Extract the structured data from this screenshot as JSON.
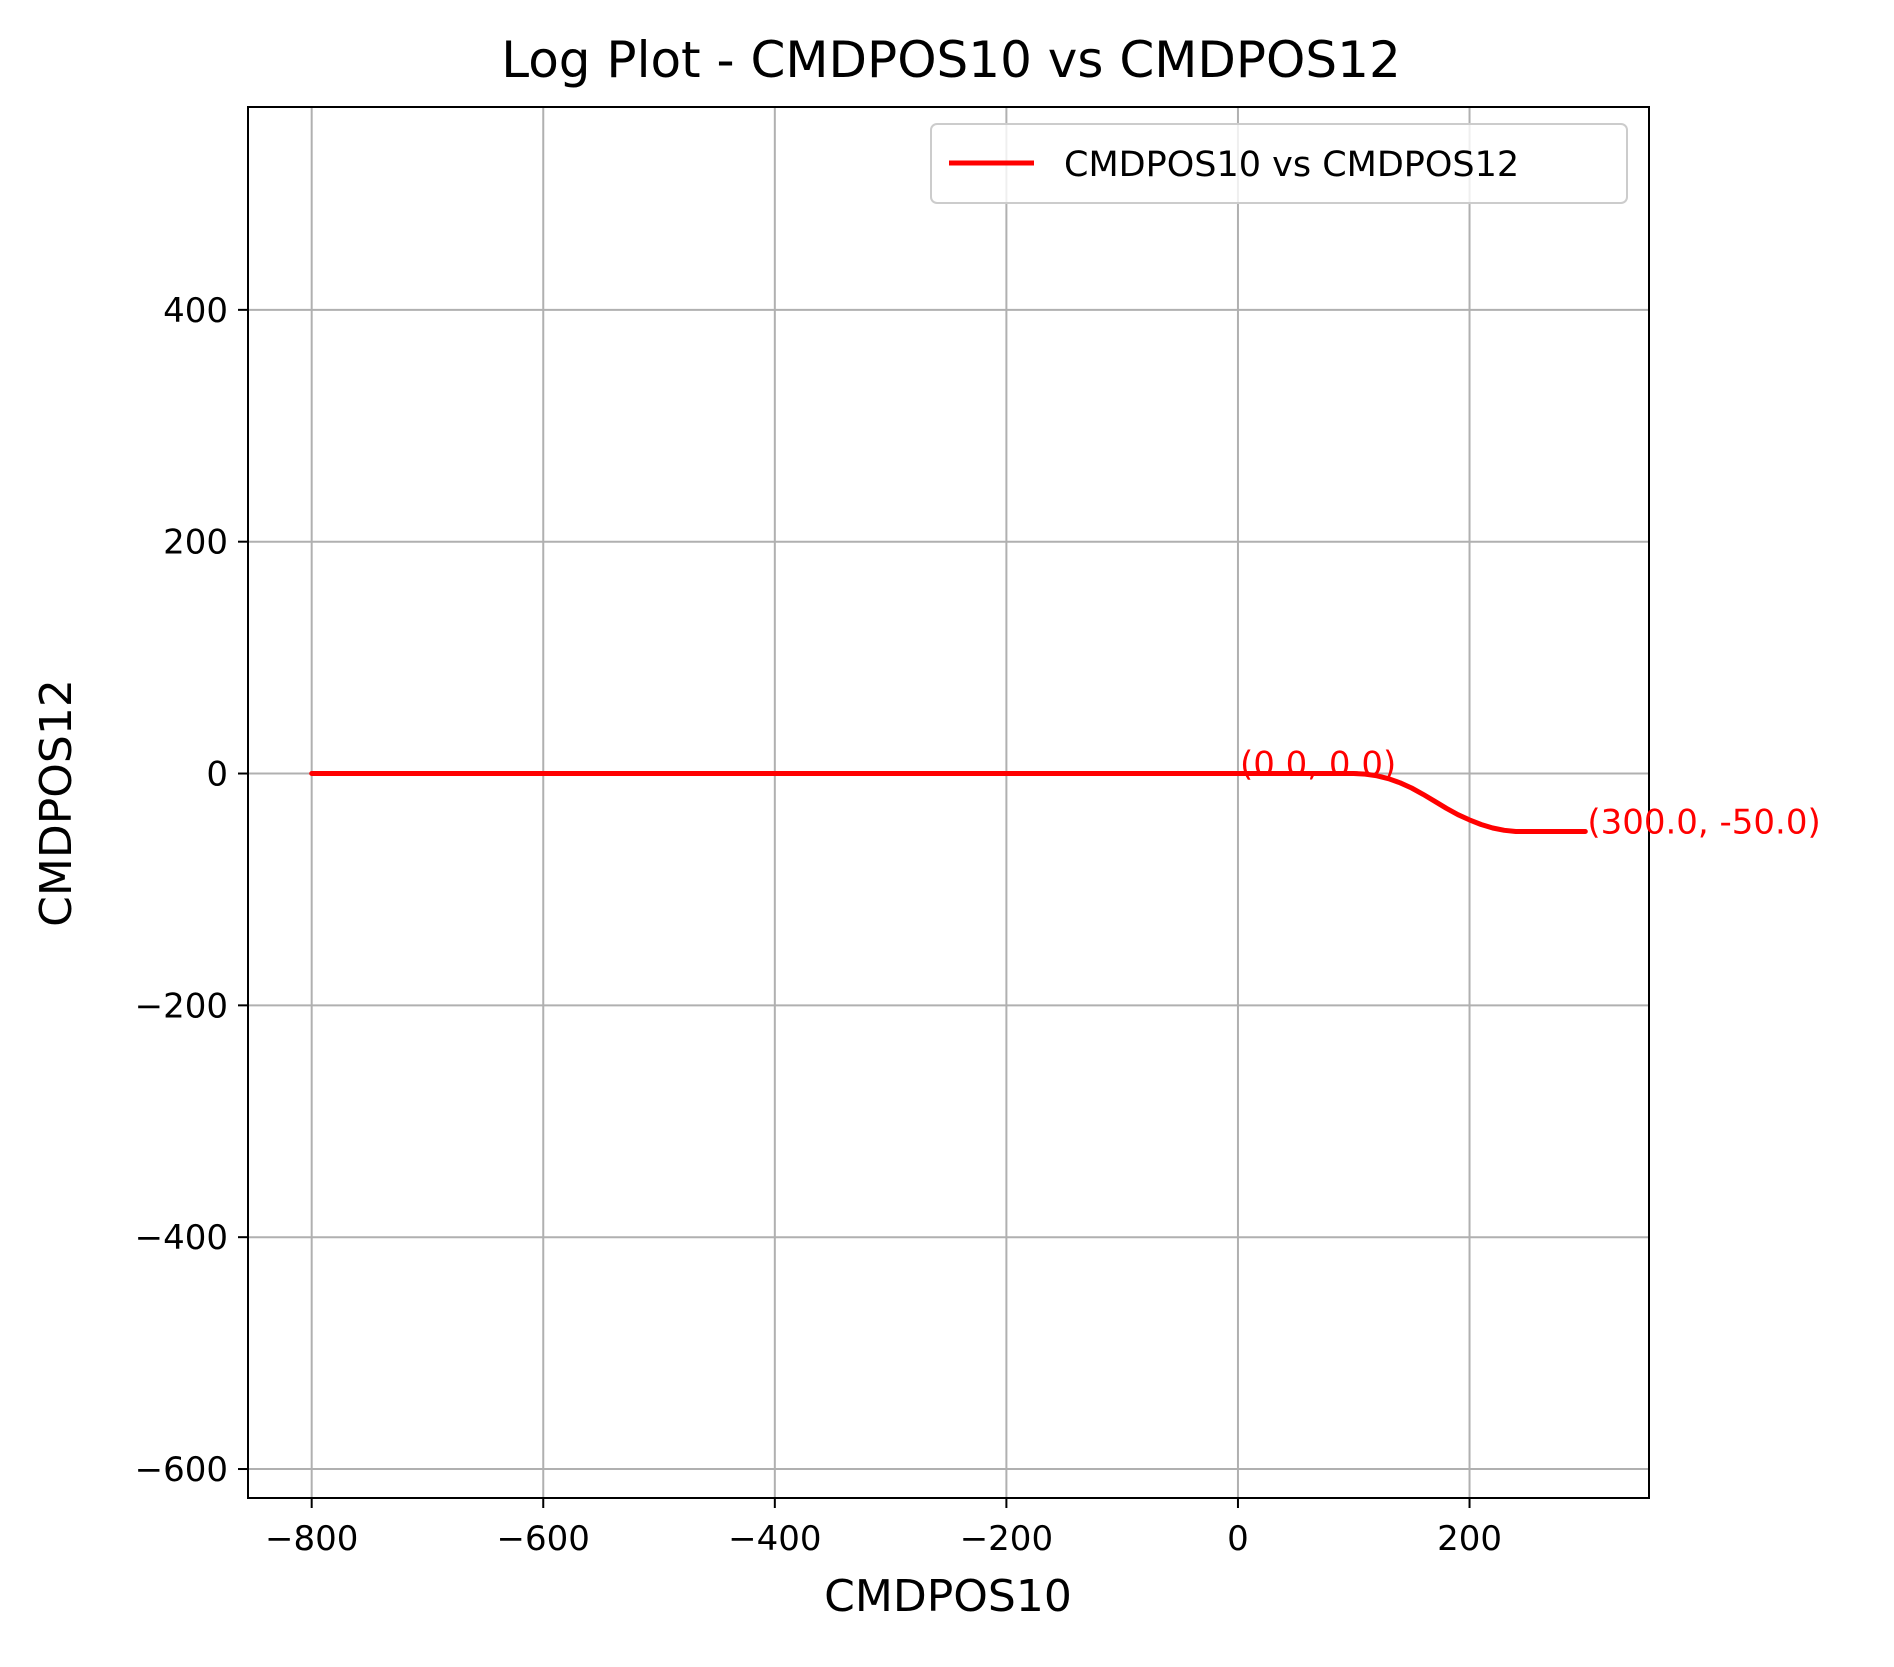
{
  "chart_data": {
    "type": "line",
    "title": "Log Plot - CMDPOS10 vs CMDPOS12",
    "xlabel": "CMDPOS10",
    "ylabel": "CMDPOS12",
    "xlim": [
      -855,
      355
    ],
    "ylim": [
      -625,
      575
    ],
    "xticks": [
      -800,
      -600,
      -400,
      -200,
      0,
      200
    ],
    "yticks": [
      -600,
      -400,
      -200,
      0,
      200,
      400
    ],
    "xtick_labels": [
      "−800",
      "−600",
      "−400",
      "−200",
      "0",
      "200"
    ],
    "ytick_labels": [
      "−600",
      "−400",
      "−200",
      "0",
      "200",
      "400"
    ],
    "grid": true,
    "legend": {
      "position": "top-right"
    },
    "series": [
      {
        "name": "CMDPOS10 vs CMDPOS12",
        "color": "#ff0000",
        "x": [
          -800,
          -600,
          -400,
          -200,
          0,
          100,
          110,
          120,
          130,
          140,
          150,
          160,
          170,
          180,
          190,
          200,
          210,
          220,
          230,
          240,
          250,
          260,
          270,
          280,
          290,
          300
        ],
        "y": [
          0,
          0,
          0,
          0,
          0,
          0,
          -0.5,
          -2,
          -4.5,
          -8,
          -12.5,
          -18,
          -24,
          -30,
          -35.5,
          -40,
          -44,
          -47,
          -49,
          -50,
          -50,
          -50,
          -50,
          -50,
          -50,
          -50
        ]
      }
    ],
    "annotations": [
      {
        "text": "(0.0, 0.0)",
        "x": 0,
        "y": 0,
        "color": "#ff0000"
      },
      {
        "text": "(300.0, -50.0)",
        "x": 300,
        "y": -50,
        "color": "#ff0000"
      }
    ]
  }
}
